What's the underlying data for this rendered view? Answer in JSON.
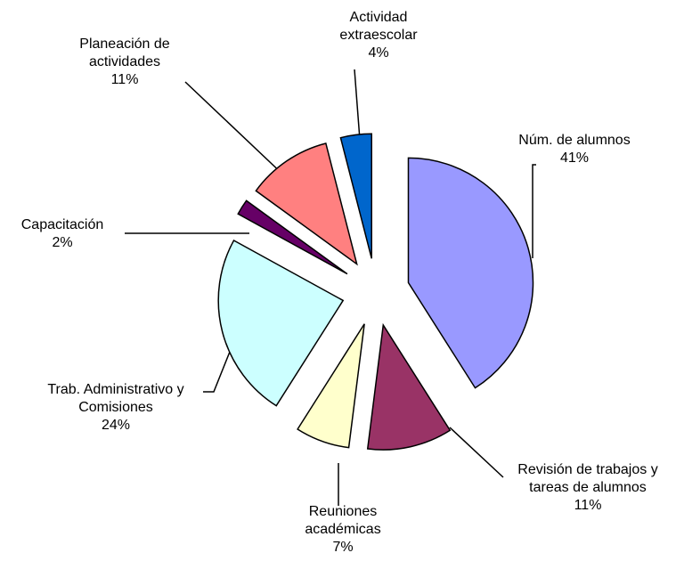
{
  "chart_data": {
    "type": "pie",
    "categories": [
      "Núm. de alumnos",
      "Revisión de trabajos y tareas de alumnos",
      "Reuniones académicas",
      "Trab. Administrativo y Comisiones",
      "Capacitación",
      "Planeación de actividades",
      "Actividad extraescolar"
    ],
    "values": [
      41,
      11,
      7,
      24,
      2,
      11,
      4
    ],
    "value_labels": [
      "41%",
      "11%",
      "7%",
      "24%",
      "2%",
      "11%",
      "4%"
    ],
    "colors": [
      "#9999ff",
      "#993366",
      "#ffffcc",
      "#ccffff",
      "#660066",
      "#ff8080",
      "#0066cc"
    ],
    "exploded": true
  }
}
